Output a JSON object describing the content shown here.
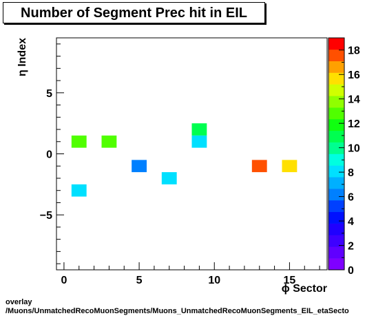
{
  "chart_data": {
    "type": "heatmap",
    "title": "Number of Segment Prec hit in EIL",
    "xlabel": "ϕ Sector",
    "ylabel": "η Index",
    "xlim": [
      -0.5,
      17.5
    ],
    "ylim": [
      -9.5,
      9.5
    ],
    "x_ticks": [
      0,
      5,
      10,
      15
    ],
    "y_ticks": [
      -5,
      0,
      5
    ],
    "z_range": [
      0,
      19
    ],
    "z_ticks": [
      0,
      2,
      4,
      6,
      8,
      10,
      12,
      14,
      16,
      18
    ],
    "cells": [
      {
        "x": 1,
        "y": 1,
        "value": 13
      },
      {
        "x": 3,
        "y": 1,
        "value": 13
      },
      {
        "x": 1,
        "y": -3,
        "value": 8
      },
      {
        "x": 5,
        "y": -1,
        "value": 6
      },
      {
        "x": 7,
        "y": -2,
        "value": 8
      },
      {
        "x": 9,
        "y": 2,
        "value": 11
      },
      {
        "x": 9,
        "y": 1,
        "value": 8
      },
      {
        "x": 13,
        "y": -1,
        "value": 18
      },
      {
        "x": 15,
        "y": -1,
        "value": 16
      }
    ],
    "palette": [
      "#7f00ff",
      "#6000ff",
      "#3e00ff",
      "#2000ff",
      "#0010ff",
      "#0040ff",
      "#0080ff",
      "#00b0ff",
      "#00e0ff",
      "#00ffe0",
      "#00ff90",
      "#00ff50",
      "#10ff10",
      "#50ff00",
      "#90ff00",
      "#d0ff00",
      "#ffe000",
      "#ffa000",
      "#ff5000",
      "#ff0000"
    ]
  },
  "footer": {
    "line1": "overlay",
    "line2": "/Muons/UnmatchedRecoMuonSegments/Muons_UnmatchedRecoMuonSegments_EIL_etaSecto"
  }
}
